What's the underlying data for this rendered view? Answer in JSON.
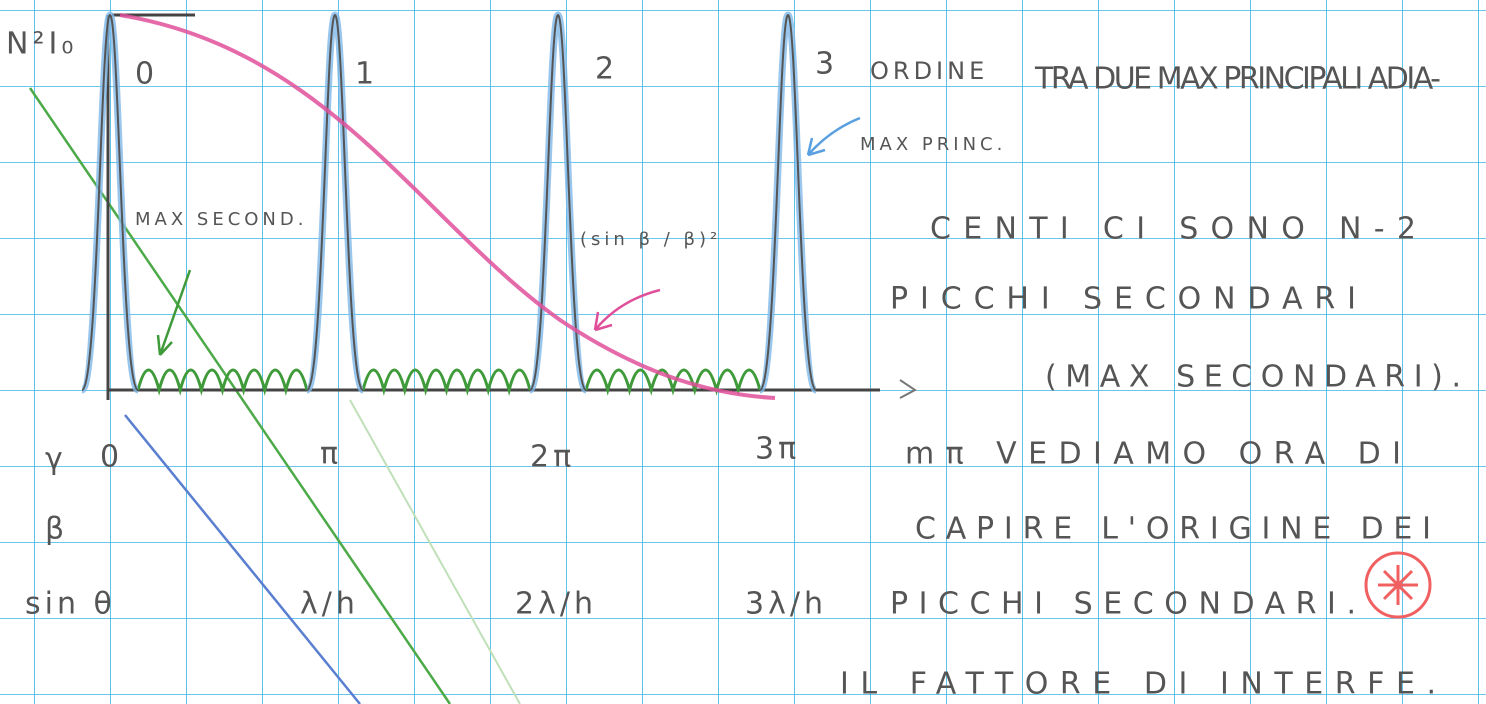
{
  "diagram": {
    "y_label": "N²I₀",
    "orders": [
      "0",
      "1",
      "2",
      "3"
    ],
    "max_secondary": "MAX SECOND.",
    "envelope": "(sin β / β)²",
    "order_label": "ORDINE",
    "principal_max": "MAX PRINC.",
    "rows": [
      {
        "label": "γ",
        "ticks": [
          "0",
          "π",
          "2π",
          "3π"
        ]
      },
      {
        "label": "β"
      },
      {
        "label": "sin θ",
        "ticks": [
          "λ/h",
          "2λ/h",
          "3λ/h"
        ]
      }
    ]
  },
  "notes": [
    "TRA DUE MAX PRINCIPALI ADIA-",
    "CENTI CI SONO N-2",
    "PICCHI SECONDARI",
    "(MAX SECONDARI).",
    "mπ VEDIAMO ORA DI",
    "CAPIRE L'ORIGINE DEI",
    "PICCHI SECONDARI.",
    "IL FATTORE DI INTERFE."
  ]
}
